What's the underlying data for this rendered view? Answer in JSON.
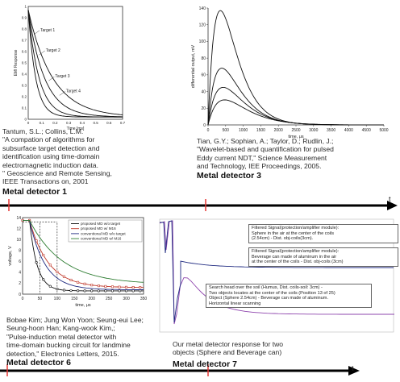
{
  "timeline": {
    "t_label": "t"
  },
  "detector1": {
    "title": "Metal detector 1",
    "citation_lines": [
      "Tantum, S.L.; Collins, L.M.",
      "\"A compation of algorithms for",
      "subsurface target detection and",
      "identification using time-domain",
      "electromagnetic induction data.",
      "\" Geoscience and Remote Sensing,",
      "IEEE Transactions on, 2001"
    ],
    "chart_data": {
      "type": "line",
      "ylabel": "EMI Response",
      "xlabel": "Time [ms]",
      "xlim": [
        0,
        0.7
      ],
      "ylim": [
        0,
        1
      ],
      "x_ticks": [
        "0",
        "0.1",
        "0.2",
        "0.3",
        "0.4",
        "0.5",
        "0.6",
        "0.7"
      ],
      "y_ticks": [
        "0",
        "0.1",
        "0.2",
        "0.3",
        "0.4",
        "0.5",
        "0.6",
        "0.7",
        "0.8",
        "0.9",
        "1"
      ],
      "series": [
        {
          "name": "Target 1",
          "tau": 0.055
        },
        {
          "name": "Target 2",
          "tau": 0.08
        },
        {
          "name": "Target 3",
          "tau": 0.12
        },
        {
          "name": "Target 4",
          "tau": 0.18
        }
      ]
    }
  },
  "detector3": {
    "title": "Metal detector 3",
    "citation_lines": [
      "Tian, G.Y.; Sophian, A.; Taylor, D.; Rudlin, J.;",
      "\"Wavelet-based and quantification for pulsed",
      "Eddy current NDT,\" Science Measurement",
      "and Technology, IEE Proceedings, 2005."
    ],
    "chart_data": {
      "type": "line",
      "ylabel": "differential output, mV",
      "xlabel": "time, μs",
      "xlim": [
        0,
        5000
      ],
      "ylim": [
        0,
        140
      ],
      "x_ticks": [
        "0",
        "500",
        "1000",
        "1500",
        "2000",
        "2500",
        "3000",
        "3500",
        "4000",
        "4500",
        "5000"
      ],
      "y_ticks": [
        "0",
        "20",
        "40",
        "60",
        "80",
        "100",
        "120",
        "140"
      ],
      "peaks": [
        137,
        68,
        45,
        30
      ]
    }
  },
  "detector6": {
    "title": "Metal detector 6",
    "citation_lines": [
      "Bobae Kim; Jung Won Yoon; Seung-eui Lee;",
      "Seung-hoon Han; Kang-wook Kim,;",
      "\"Pulse-induction metal detector with",
      "time-domain bucking circuit for landmine",
      "detection,\" Electronics Letters, 2015."
    ],
    "chart_data": {
      "type": "line",
      "ylabel": "voltage, V",
      "xlabel": "time, μs",
      "xlim": [
        0,
        350
      ],
      "ylim": [
        0,
        14
      ],
      "x_ticks": [
        "0",
        "50",
        "100",
        "150",
        "200",
        "250",
        "300",
        "350"
      ],
      "y_ticks": [
        "0",
        "2",
        "4",
        "6",
        "8",
        "10",
        "12",
        "14"
      ],
      "series": [
        {
          "name": "proposed MD w/o target",
          "color": "#111111"
        },
        {
          "name": "proposed MD w/ M16",
          "color": "#c0392b"
        },
        {
          "name": "conventional MD w/o target",
          "color": "#1f2a80"
        },
        {
          "name": "conventional MD w/ M16",
          "color": "#2e7d32"
        }
      ]
    }
  },
  "detector7": {
    "title": "Metal detector 7",
    "caption_lines": [
      "Our metal detector response for two",
      "objects (Sphere and Beverage can)"
    ],
    "box1_lines": [
      "Filtered Signal(protection/amplifier module):",
      "Sphere in the air at the center of the coils",
      "(2.54cm) - Dist. obj-coils(3cm)."
    ],
    "box2_lines": [
      "Filtered Signal(protection/amplifier module):",
      "Beverage can made of aluminum in the air",
      "at the center of the coils - Dist. obj-coils (3cm)"
    ],
    "box3_lines": [
      "Search head over the soil (Humus, Dist. coils-soil: 3cm) -",
      "Two objects locates at the center of the coils (Position 13 of 25)",
      "Object (Sphere 2.54cm) - Beverage can made of aluminum.",
      "Horizontal linear scanning"
    ]
  },
  "colors": {
    "timeline": "#000000",
    "marker": "#e53935",
    "purple": "#8e44ad",
    "navy": "#1f2a80"
  }
}
